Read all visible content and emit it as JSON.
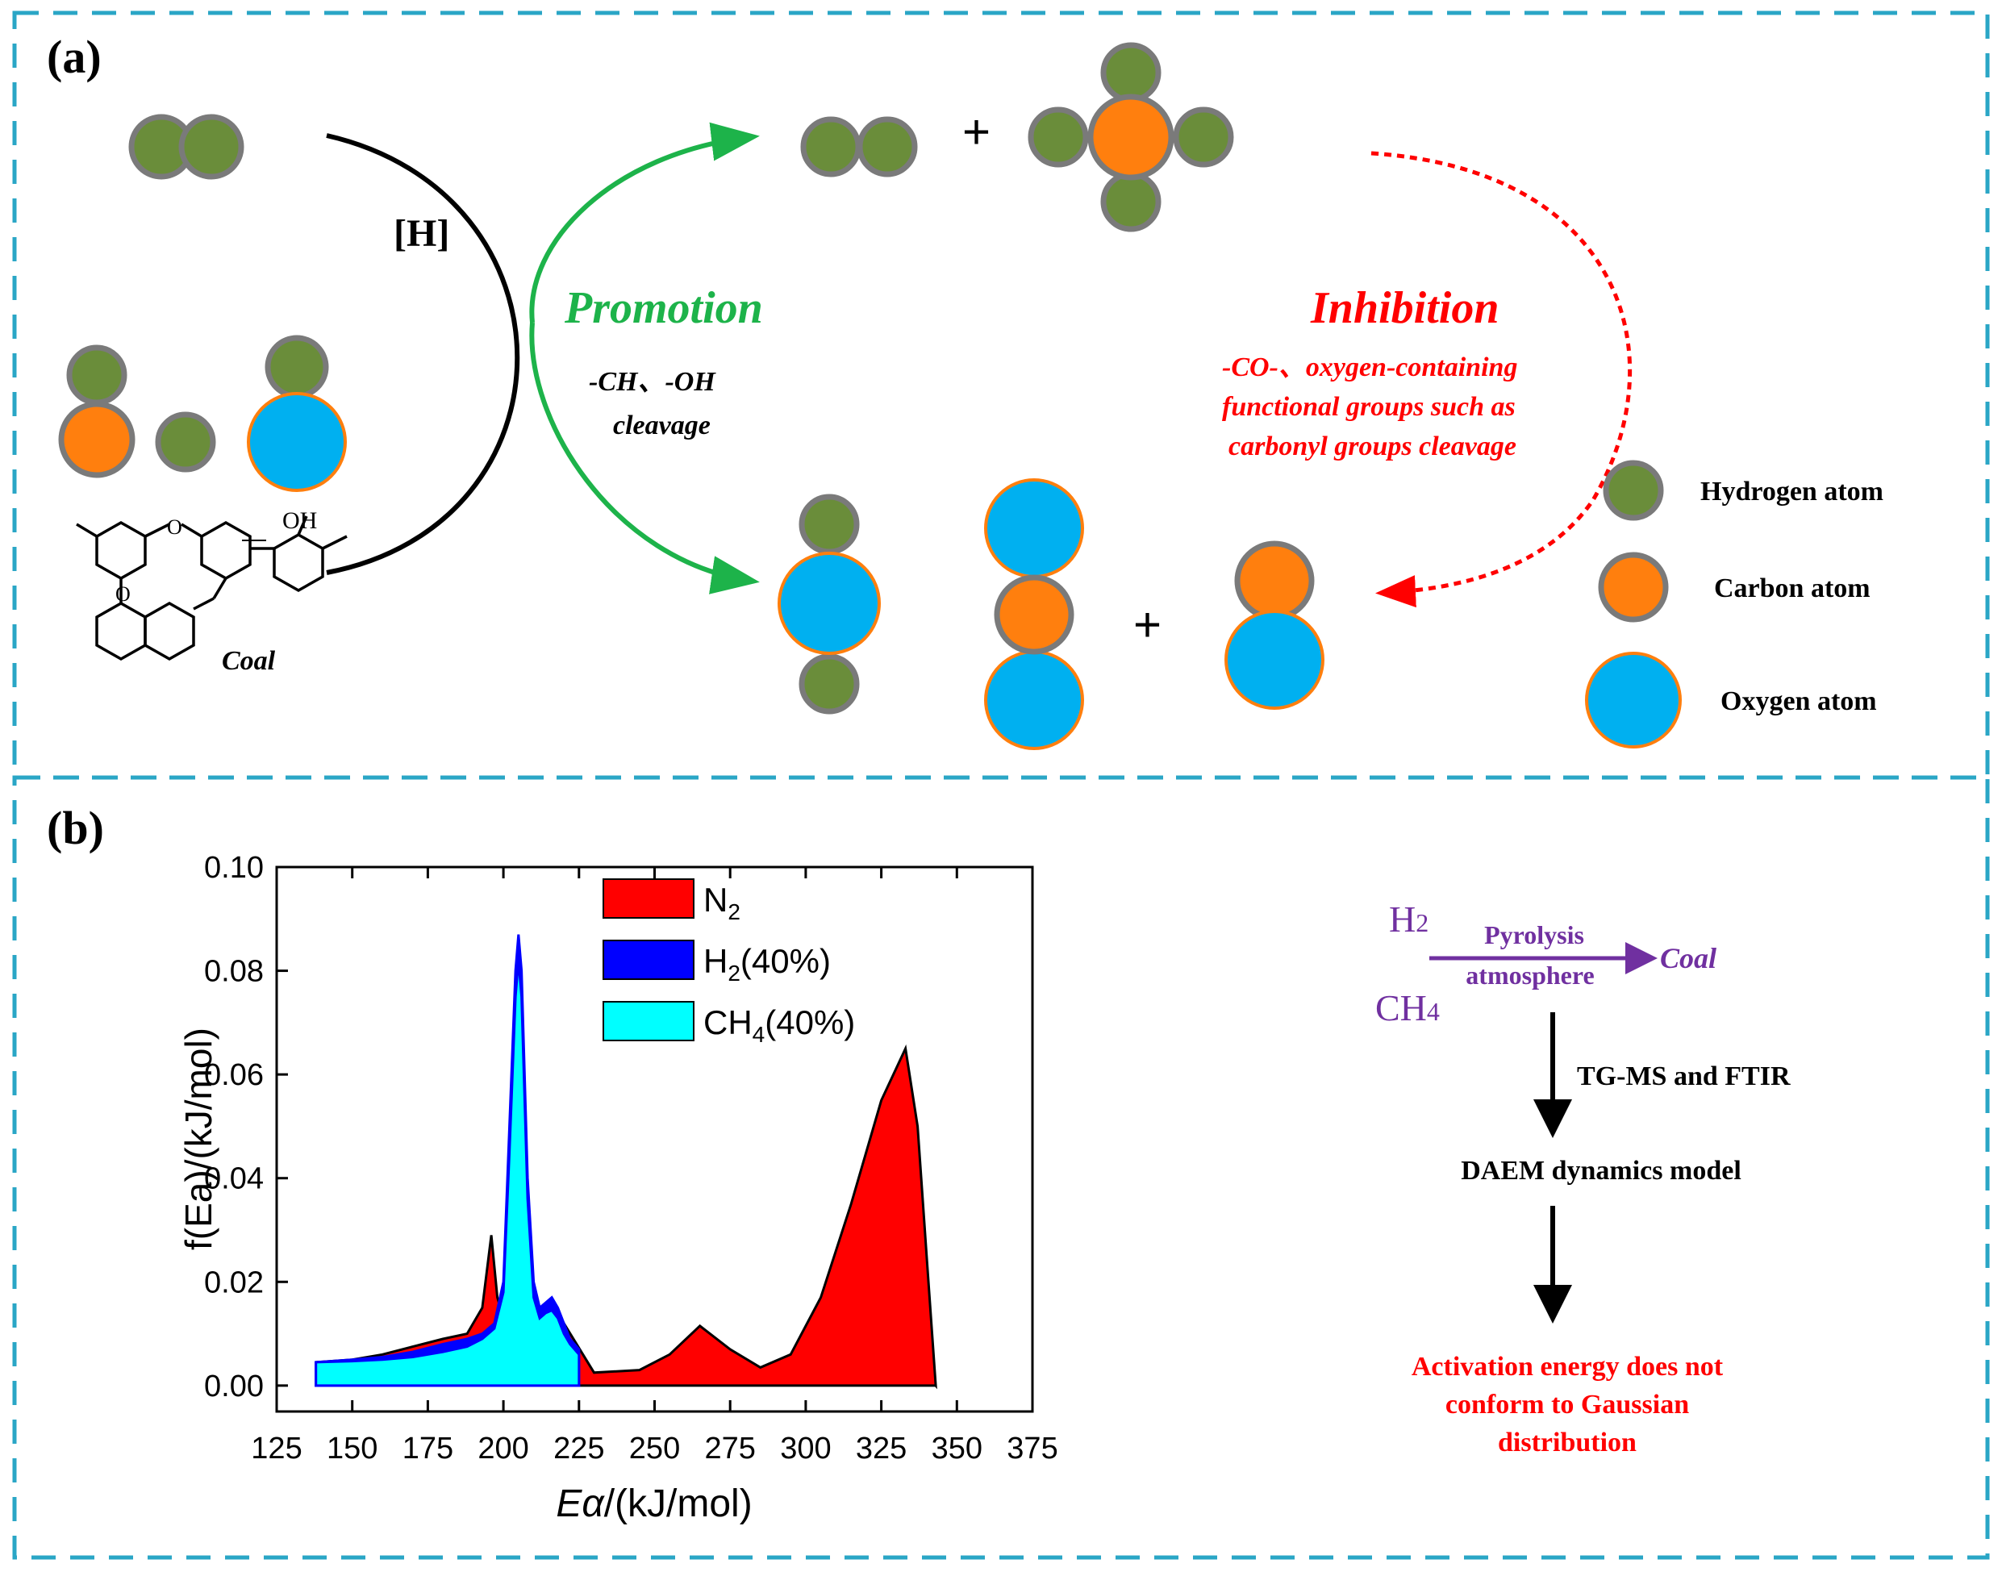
{
  "panel_a": {
    "label": "(a)",
    "hydrogen_source": "[H]",
    "coal_label": "Coal",
    "promotion": {
      "title": "Promotion",
      "line1": "-CH、-OH",
      "line2": "cleavage",
      "color": "#1db34a"
    },
    "inhibition": {
      "title": "Inhibition",
      "line1": "-CO-、oxygen-containing",
      "line2": "functional groups such as",
      "line3": "carbonyl groups cleavage",
      "color": "#ff0000"
    },
    "plus": "+",
    "coal_structure": {
      "oh_label": "OH",
      "o_label": "O"
    },
    "legend": [
      {
        "label": "Hydrogen atom",
        "color": "#6a8d3a"
      },
      {
        "label": "Carbon atom",
        "color": "#ff7f0e"
      },
      {
        "label": "Oxygen atom",
        "color": "#00b0f0"
      }
    ]
  },
  "panel_b": {
    "label": "(b)",
    "flow": {
      "h2": "H",
      "h2_sub": "2",
      "ch4": "CH",
      "ch4_sub": "4",
      "arrow_top": "Pyrolysis",
      "arrow_bottom": "atmosphere",
      "target": "Coal",
      "step1": "TG-MS and FTIR",
      "step2": "DAEM dynamics model",
      "result_line1": "Activation energy does not",
      "result_line2": "conform to Gaussian",
      "result_line3": "distribution",
      "purple": "#7030a0",
      "red": "#ff0000"
    }
  },
  "chart_data": {
    "type": "area",
    "title": "",
    "xlabel_italic": "E",
    "xlabel_sym": "α",
    "xlabel_rest": "/(kJ/mol)",
    "ylabel": "f(Ea)/(kJ/mol)",
    "xlim": [
      125,
      375
    ],
    "ylim": [
      -0.005,
      0.1
    ],
    "xticks": [
      "125",
      "150",
      "175",
      "200",
      "225",
      "250",
      "275",
      "300",
      "325",
      "350",
      "375"
    ],
    "yticks": [
      "0.00",
      "0.02",
      "0.04",
      "0.06",
      "0.08",
      "0.10"
    ],
    "legend_placement": "top-left",
    "series": [
      {
        "name": "N",
        "sub": "2",
        "tail": "",
        "color": "#ff0000",
        "x": [
          138,
          150,
          160,
          170,
          180,
          188,
          193,
          196,
          198,
          200,
          205,
          210,
          215,
          220,
          230,
          245,
          255,
          265,
          275,
          285,
          295,
          305,
          315,
          325,
          333,
          337,
          340,
          343
        ],
        "y": [
          0.0045,
          0.005,
          0.006,
          0.0075,
          0.009,
          0.01,
          0.015,
          0.029,
          0.017,
          0.013,
          0.011,
          0.011,
          0.011,
          0.012,
          0.0025,
          0.003,
          0.006,
          0.0115,
          0.007,
          0.0035,
          0.006,
          0.017,
          0.035,
          0.055,
          0.065,
          0.05,
          0.025,
          0.0
        ]
      },
      {
        "name": "H",
        "sub": "2",
        "tail": "(40%)",
        "color": "#0000ff",
        "x": [
          138,
          150,
          160,
          170,
          180,
          188,
          193,
          197,
          200,
          202,
          204,
          205,
          206,
          208,
          210,
          212,
          214,
          216,
          218,
          220,
          222,
          225
        ],
        "y": [
          0.0045,
          0.005,
          0.0055,
          0.0065,
          0.008,
          0.009,
          0.01,
          0.012,
          0.02,
          0.05,
          0.08,
          0.087,
          0.08,
          0.04,
          0.02,
          0.015,
          0.016,
          0.017,
          0.015,
          0.012,
          0.009,
          0.007
        ]
      },
      {
        "name": "CH",
        "sub": "4",
        "tail": "(40%)",
        "color": "#00ffff",
        "x": [
          138,
          150,
          160,
          170,
          180,
          188,
          193,
          197,
          200,
          202,
          204,
          205,
          206,
          208,
          210,
          212,
          214,
          216,
          218,
          220,
          222,
          225
        ],
        "y": [
          0.0045,
          0.0047,
          0.005,
          0.0055,
          0.0065,
          0.0075,
          0.009,
          0.011,
          0.018,
          0.045,
          0.075,
          0.082,
          0.075,
          0.036,
          0.017,
          0.013,
          0.014,
          0.0145,
          0.013,
          0.01,
          0.008,
          0.006
        ]
      }
    ]
  }
}
